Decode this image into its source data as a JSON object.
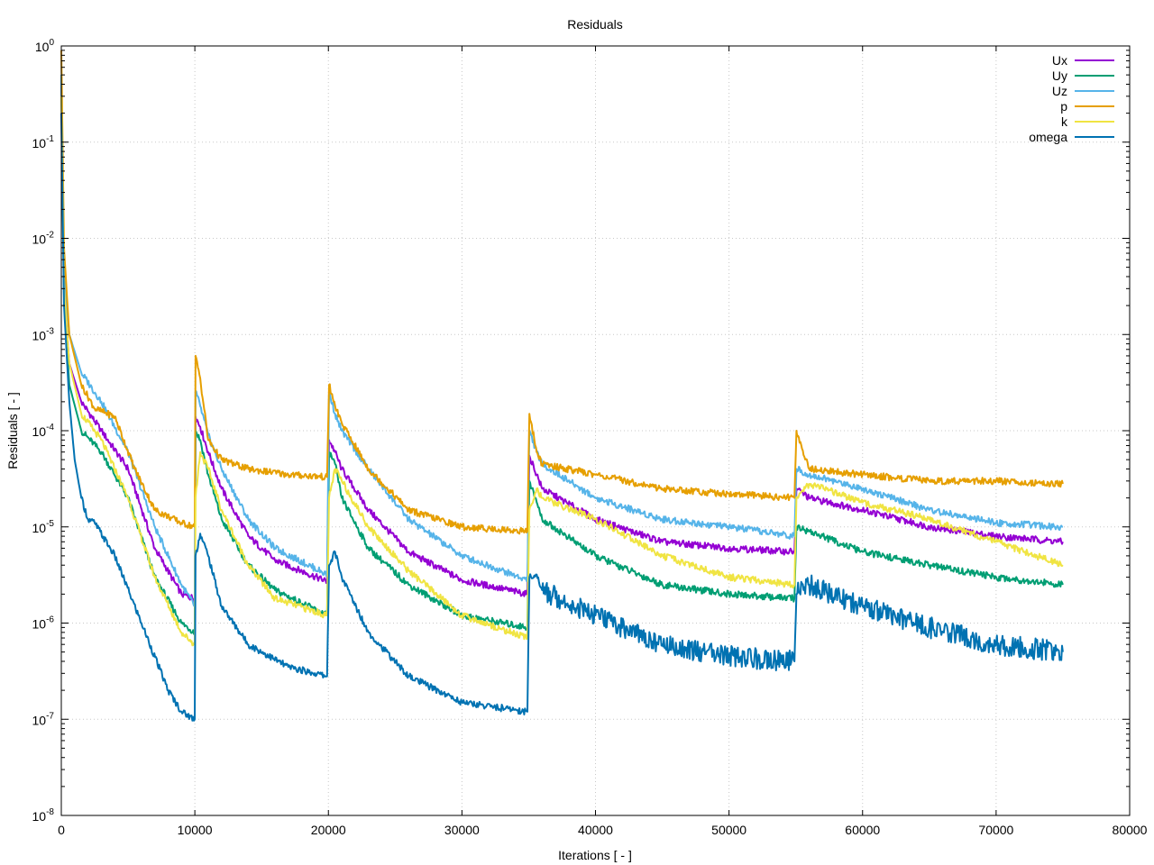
{
  "chart_data": {
    "type": "line",
    "title": "Residuals",
    "xlabel": "Iterations [ - ]",
    "ylabel": "Residuals [ - ]",
    "xlim": [
      0,
      80000
    ],
    "ylim": [
      1e-08,
      1
    ],
    "yscale": "log",
    "grid": true,
    "legend_position": "top-right",
    "x_ticks": [
      0,
      10000,
      20000,
      30000,
      40000,
      50000,
      60000,
      70000,
      80000
    ],
    "x_tick_labels": [
      "0",
      "10000",
      "20000",
      "30000",
      "40000",
      "50000",
      "60000",
      "70000",
      "80000"
    ],
    "y_ticks": [
      1e-08,
      1e-07,
      1e-06,
      1e-05,
      0.0001,
      0.001,
      0.01,
      0.1,
      1
    ],
    "y_tick_labels": [
      {
        "base": "10",
        "exp": "-8"
      },
      {
        "base": "10",
        "exp": "-7"
      },
      {
        "base": "10",
        "exp": "-6"
      },
      {
        "base": "10",
        "exp": "-5"
      },
      {
        "base": "10",
        "exp": "-4"
      },
      {
        "base": "10",
        "exp": "-3"
      },
      {
        "base": "10",
        "exp": "-2"
      },
      {
        "base": "10",
        "exp": "-1"
      },
      {
        "base": "10",
        "exp": "0"
      }
    ],
    "series": [
      {
        "name": "Ux",
        "color": "#9400d3",
        "x": [
          0,
          200,
          600,
          1500,
          3000,
          5000,
          7000,
          9000,
          9990,
          10050,
          10400,
          11000,
          12000,
          14000,
          16000,
          19900,
          20050,
          20500,
          21000,
          23000,
          26000,
          30000,
          34900,
          35050,
          35600,
          36000,
          40000,
          45000,
          50000,
          54900,
          55050,
          56000,
          60000,
          65000,
          70000,
          75000
        ],
        "y": [
          0.5,
          0.003,
          0.0005,
          0.0002,
          0.0001,
          4e-05,
          6e-06,
          2e-06,
          1.8e-06,
          0.00014,
          0.00011,
          6e-05,
          2.5e-05,
          8e-06,
          4.5e-06,
          2.7e-06,
          8e-05,
          6e-05,
          4e-05,
          1.5e-05,
          5.5e-06,
          2.8e-06,
          2e-06,
          5.5e-05,
          3.5e-05,
          2.5e-05,
          1.2e-05,
          7e-06,
          6e-06,
          5.5e-06,
          2.5e-05,
          2e-05,
          1.5e-05,
          1e-05,
          8e-06,
          7e-06
        ]
      },
      {
        "name": "Uy",
        "color": "#009e73",
        "x": [
          0,
          200,
          600,
          1500,
          3000,
          5000,
          7000,
          9000,
          9990,
          10050,
          10400,
          11000,
          12000,
          14000,
          16000,
          19900,
          20050,
          20500,
          21000,
          23000,
          26000,
          30000,
          34900,
          35050,
          35600,
          36000,
          40000,
          45000,
          50000,
          54900,
          55050,
          56000,
          60000,
          65000,
          70000,
          75000
        ],
        "y": [
          0.5,
          0.0025,
          0.0003,
          0.0001,
          6e-05,
          2e-05,
          3e-06,
          1e-06,
          8e-07,
          0.0001,
          8e-05,
          3.5e-05,
          1.2e-05,
          4e-06,
          2.2e-06,
          1.2e-06,
          6e-05,
          4.5e-05,
          2e-05,
          6e-06,
          2.5e-06,
          1.2e-06,
          9e-07,
          3e-05,
          1.8e-05,
          1.2e-05,
          5e-06,
          2.5e-06,
          2e-06,
          1.8e-06,
          1e-05,
          9e-06,
          5.5e-06,
          4e-06,
          3e-06,
          2.5e-06
        ]
      },
      {
        "name": "Uz",
        "color": "#56b4e9",
        "x": [
          0,
          200,
          600,
          1500,
          3000,
          5000,
          7000,
          9000,
          9990,
          10050,
          10400,
          11000,
          12000,
          14000,
          16000,
          19900,
          20050,
          20500,
          21000,
          23000,
          26000,
          30000,
          34900,
          35050,
          35600,
          36000,
          40000,
          45000,
          50000,
          54900,
          55050,
          56000,
          60000,
          65000,
          70000,
          75000
        ],
        "y": [
          0.5,
          0.004,
          0.001,
          0.0004,
          0.0002,
          6e-05,
          1e-05,
          2.5e-06,
          1.5e-06,
          0.00026,
          0.00018,
          9e-05,
          4e-05,
          1.2e-05,
          6e-06,
          3.2e-06,
          0.00025,
          0.00015,
          0.0001,
          4e-05,
          1.2e-05,
          5e-06,
          2.8e-06,
          0.0001,
          6e-05,
          4.5e-05,
          2e-05,
          1.2e-05,
          1e-05,
          8e-06,
          4e-05,
          3.5e-05,
          2.5e-05,
          1.5e-05,
          1.1e-05,
          1e-05
        ]
      },
      {
        "name": "p",
        "color": "#e69f00",
        "x": [
          0,
          200,
          600,
          1500,
          2500,
          4000,
          5500,
          7000,
          9000,
          9990,
          10050,
          10400,
          11000,
          12000,
          14000,
          17000,
          19900,
          20050,
          20500,
          21000,
          23000,
          26000,
          30000,
          34900,
          35050,
          35600,
          36000,
          40000,
          45000,
          50000,
          54900,
          55050,
          56000,
          60000,
          65000,
          70000,
          75000
        ],
        "y": [
          0.9,
          0.008,
          0.001,
          0.0003,
          0.00017,
          0.00014,
          4e-05,
          1.5e-05,
          1.1e-05,
          1e-05,
          0.0006,
          0.00035,
          8e-05,
          5e-05,
          4e-05,
          3.5e-05,
          3.3e-05,
          0.0003,
          0.00018,
          0.00012,
          4e-05,
          1.5e-05,
          1e-05,
          9e-06,
          0.00015,
          6e-05,
          4.5e-05,
          3.5e-05,
          2.5e-05,
          2.2e-05,
          2e-05,
          0.0001,
          4e-05,
          3.5e-05,
          3e-05,
          3e-05,
          2.8e-05
        ]
      },
      {
        "name": "k",
        "color": "#f0e442",
        "x": [
          0,
          200,
          600,
          1500,
          3000,
          5000,
          7000,
          9000,
          9990,
          10050,
          10400,
          11000,
          12000,
          14000,
          16000,
          19900,
          20050,
          20500,
          21000,
          23000,
          26000,
          30000,
          34900,
          35050,
          35600,
          36000,
          40000,
          45000,
          50000,
          54900,
          55050,
          56000,
          60000,
          65000,
          70000,
          75000
        ],
        "y": [
          0.3,
          0.003,
          0.0005,
          0.00015,
          8e-05,
          2e-05,
          3e-06,
          8e-07,
          6e-07,
          2e-05,
          6e-05,
          4e-05,
          1.5e-05,
          4e-06,
          1.8e-06,
          1.2e-06,
          2e-05,
          4e-05,
          3e-05,
          1e-05,
          3.5e-06,
          1.2e-06,
          7e-07,
          1.5e-05,
          2.5e-05,
          2e-05,
          1.2e-05,
          5e-06,
          3e-06,
          2.5e-06,
          2e-05,
          2.8e-05,
          1.8e-05,
          1.2e-05,
          7e-06,
          4e-06
        ]
      },
      {
        "name": "omega",
        "color": "#0072b2",
        "x": [
          0,
          200,
          600,
          1000,
          1500,
          2000,
          2500,
          4000,
          6000,
          8000,
          9000,
          9990,
          10050,
          10400,
          11000,
          12000,
          14000,
          17000,
          19900,
          20050,
          20500,
          21000,
          23000,
          26000,
          30000,
          34900,
          35050,
          35600,
          36000,
          40000,
          45000,
          50000,
          54900,
          55050,
          56000,
          60000,
          65000,
          70000,
          75000
        ],
        "y": [
          0.2,
          0.002,
          0.0002,
          5e-05,
          2e-05,
          1.2e-05,
          1.1e-05,
          5e-06,
          1e-06,
          2e-07,
          1.2e-07,
          1e-07,
          5e-06,
          8.5e-06,
          5e-06,
          1.5e-06,
          6e-07,
          3.5e-07,
          2.8e-07,
          4e-06,
          5.5e-06,
          3e-06,
          8e-07,
          2.8e-07,
          1.5e-07,
          1.2e-07,
          3e-06,
          3.2e-06,
          2.2e-06,
          1.2e-06,
          6e-07,
          4.5e-07,
          4e-07,
          2e-06,
          2.5e-06,
          1.5e-06,
          9e-07,
          6e-07,
          5e-07
        ]
      }
    ]
  }
}
